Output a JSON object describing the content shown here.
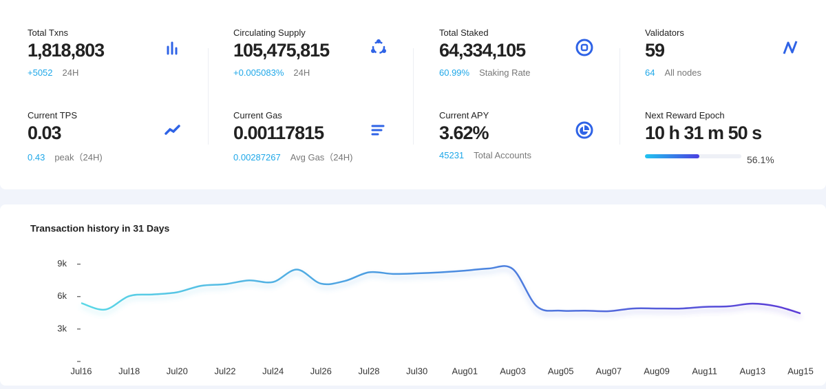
{
  "stats": [
    {
      "label": "Total Txns",
      "value": "1,818,803",
      "sub_value": "+5052",
      "sub_label": "24H"
    },
    {
      "label": "Circulating Supply",
      "value": "105,475,815",
      "sub_value": "+0.005083%",
      "sub_label": "24H"
    },
    {
      "label": "Total Staked",
      "value": "64,334,105",
      "sub_value": "60.99%",
      "sub_label": "Staking Rate"
    },
    {
      "label": "Validators",
      "value": "59",
      "sub_value": "64",
      "sub_label": "All nodes"
    },
    {
      "label": "Current TPS",
      "value": "0.03",
      "sub_value": "0.43",
      "sub_label": "peak（24H)"
    },
    {
      "label": "Current Gas",
      "value": "0.00117815",
      "sub_value": "0.00287267",
      "sub_label": "Avg Gas（24H)"
    },
    {
      "label": "Current APY",
      "value": "3.62%",
      "sub_value": "45231",
      "sub_label": "Total Accounts"
    },
    {
      "label": "Next Reward Epoch",
      "value": "10 h 31 m 50 s",
      "progress": {
        "value": 56.1,
        "label": "56.1%"
      }
    }
  ],
  "chart_data": {
    "type": "line",
    "title": "Transaction history in 31 Days",
    "categories": [
      "Jul16",
      null,
      "Jul18",
      null,
      "Jul20",
      null,
      "Jul22",
      null,
      "Jul24",
      null,
      "Jul26",
      null,
      "Jul28",
      null,
      "Jul30",
      null,
      "Aug01",
      null,
      "Aug03",
      null,
      "Aug05",
      null,
      "Aug07",
      null,
      "Aug09",
      null,
      "Aug11",
      null,
      "Aug13",
      null,
      "Aug15"
    ],
    "values": [
      5400,
      4800,
      6050,
      6200,
      6400,
      7000,
      7150,
      7500,
      7350,
      8500,
      7200,
      7450,
      8250,
      8100,
      8150,
      8250,
      8400,
      8600,
      8550,
      5100,
      4700,
      4700,
      4650,
      4900,
      4900,
      4900,
      5050,
      5100,
      5350,
      5100,
      4450
    ],
    "ylim": [
      0,
      10000
    ],
    "yticks": [
      {
        "value": 3000,
        "label": "3k"
      },
      {
        "value": 6000,
        "label": "6k"
      },
      {
        "value": 9000,
        "label": "9k"
      }
    ],
    "colors": [
      "#5ad8e6",
      "#4a8fe0",
      "#5b3ad6"
    ]
  }
}
